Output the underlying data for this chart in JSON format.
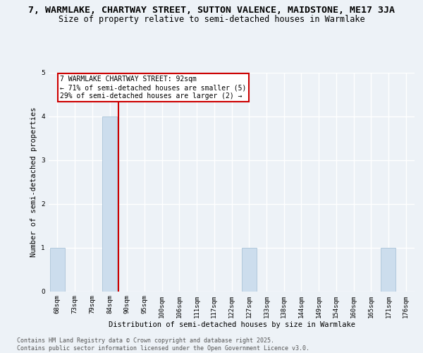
{
  "title_line1": "7, WARMLAKE, CHARTWAY STREET, SUTTON VALENCE, MAIDSTONE, ME17 3JA",
  "title_line2": "Size of property relative to semi-detached houses in Warmlake",
  "xlabel": "Distribution of semi-detached houses by size in Warmlake",
  "ylabel": "Number of semi-detached properties",
  "categories": [
    "68sqm",
    "73sqm",
    "79sqm",
    "84sqm",
    "90sqm",
    "95sqm",
    "100sqm",
    "106sqm",
    "111sqm",
    "117sqm",
    "122sqm",
    "127sqm",
    "133sqm",
    "138sqm",
    "144sqm",
    "149sqm",
    "154sqm",
    "160sqm",
    "165sqm",
    "171sqm",
    "176sqm"
  ],
  "values": [
    1,
    0,
    0,
    4,
    0,
    0,
    0,
    0,
    0,
    0,
    0,
    1,
    0,
    0,
    0,
    0,
    0,
    0,
    0,
    1,
    0
  ],
  "bar_color": "#ccdded",
  "bar_edge_color": "#aac4d8",
  "vline_color": "#cc0000",
  "vline_pos": 3.5,
  "annotation_text": "7 WARMLAKE CHARTWAY STREET: 92sqm\n← 71% of semi-detached houses are smaller (5)\n29% of semi-detached houses are larger (2) →",
  "annotation_box_edgecolor": "#cc0000",
  "ylim": [
    0,
    5
  ],
  "yticks": [
    0,
    1,
    2,
    3,
    4,
    5
  ],
  "footer_text": "Contains HM Land Registry data © Crown copyright and database right 2025.\nContains public sector information licensed under the Open Government Licence v3.0.",
  "background_color": "#edf2f7",
  "grid_color": "#ffffff",
  "title_fontsize": 9.5,
  "subtitle_fontsize": 8.5,
  "axis_label_fontsize": 7.5,
  "tick_fontsize": 6.5,
  "annotation_fontsize": 7.0,
  "footer_fontsize": 6.0
}
